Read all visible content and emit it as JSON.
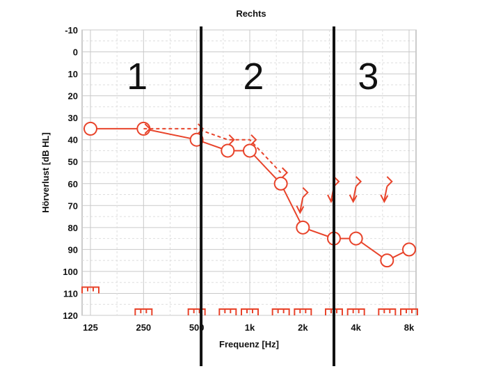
{
  "chart_data": {
    "type": "line",
    "title": "Rechts",
    "xlabel": "Frequenz [Hz]",
    "ylabel": "Hörverlust [dB HL]",
    "x_scale": "log2",
    "y_inverted": true,
    "ylim": [
      -10,
      120
    ],
    "xlim": [
      125,
      8000
    ],
    "y_ticks": [
      -10,
      0,
      10,
      20,
      30,
      40,
      50,
      60,
      70,
      80,
      90,
      100,
      110,
      120
    ],
    "x_ticks": [
      {
        "value": 125,
        "label": "125"
      },
      {
        "value": 250,
        "label": "250"
      },
      {
        "value": 500,
        "label": "500"
      },
      {
        "value": 1000,
        "label": "1k"
      },
      {
        "value": 2000,
        "label": "2k"
      },
      {
        "value": 4000,
        "label": "4k"
      },
      {
        "value": 8000,
        "label": "8k"
      }
    ],
    "grid": true,
    "color": "#e8432a",
    "series": [
      {
        "marker": "circle",
        "line": "solid",
        "points": [
          {
            "x": 125,
            "y": 35
          },
          {
            "x": 250,
            "y": 35
          },
          {
            "x": 500,
            "y": 40
          },
          {
            "x": 750,
            "y": 45
          },
          {
            "x": 1000,
            "y": 45
          },
          {
            "x": 1500,
            "y": 60
          },
          {
            "x": 2000,
            "y": 80
          },
          {
            "x": 3000,
            "y": 85
          },
          {
            "x": 4000,
            "y": 85
          },
          {
            "x": 6000,
            "y": 95
          },
          {
            "x": 8000,
            "y": 90
          }
        ]
      },
      {
        "marker": "bracket",
        "line": "dashed",
        "points": [
          {
            "x": 250,
            "y": 35
          },
          {
            "x": 500,
            "y": 35
          },
          {
            "x": 750,
            "y": 40
          },
          {
            "x": 1000,
            "y": 40
          },
          {
            "x": 1500,
            "y": 55
          }
        ]
      },
      {
        "marker": "bracket-arrow",
        "line": "none",
        "points": [
          {
            "x": 2000,
            "y": 65
          },
          {
            "x": 3000,
            "y": 60
          },
          {
            "x": 4000,
            "y": 60
          },
          {
            "x": 6000,
            "y": 60
          }
        ]
      },
      {
        "marker": "bracket-bottom",
        "line": "none",
        "points": [
          {
            "x": 125,
            "y": 110
          },
          {
            "x": 250,
            "y": 120
          },
          {
            "x": 500,
            "y": 120
          },
          {
            "x": 750,
            "y": 120
          },
          {
            "x": 1000,
            "y": 120
          },
          {
            "x": 1500,
            "y": 120
          },
          {
            "x": 2000,
            "y": 120
          },
          {
            "x": 3000,
            "y": 120
          },
          {
            "x": 4000,
            "y": 120
          },
          {
            "x": 6000,
            "y": 120
          },
          {
            "x": 8000,
            "y": 120
          }
        ]
      }
    ],
    "dividers": [
      {
        "x": 530
      },
      {
        "x": 3000
      }
    ],
    "region_labels": [
      {
        "text": "1",
        "x": 230,
        "y": 10
      },
      {
        "text": "2",
        "x": 1050,
        "y": 10
      },
      {
        "text": "3",
        "x": 4700,
        "y": 10
      }
    ]
  }
}
